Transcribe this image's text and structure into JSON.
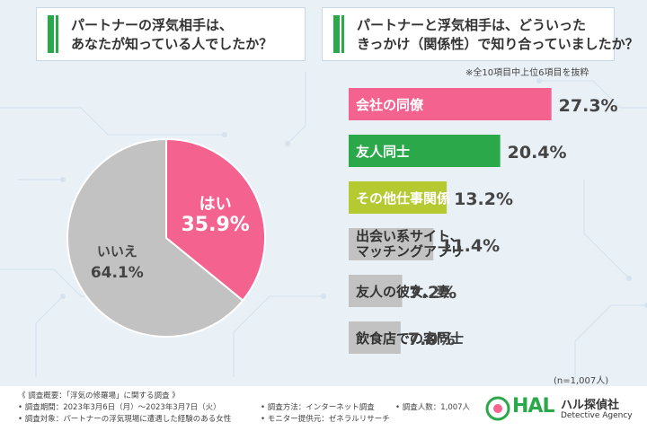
{
  "left_question": {
    "line1": "パートナーの浮気相手は、",
    "line2": "あなたが知っている人でしたか？"
  },
  "right_question": {
    "line1": "パートナーと浮気相手は、どういった",
    "line2": "きっかけ（関係性）で知り合っていましたか？"
  },
  "selection_note": "※全10項目中上位6項目を抜粋",
  "sample_note": "(n=1,007人)",
  "colors": {
    "pink": "#f4628f",
    "gray": "#c2c2c2",
    "green": "#2aa84a",
    "lime": "#b5c930"
  },
  "chart_data": [
    {
      "type": "pie",
      "slices": [
        {
          "label": "はい",
          "value": 35.9,
          "value_text": "35.9%",
          "color": "#f4628f"
        },
        {
          "label": "いいえ",
          "value": 64.1,
          "value_text": "64.1%",
          "color": "#c2c2c2"
        }
      ]
    },
    {
      "type": "bar",
      "orientation": "horizontal",
      "categories": [
        [
          "会社の同僚"
        ],
        [
          "友人同士"
        ],
        [
          "その他仕事関係"
        ],
        [
          "出会い系サイト、",
          "マッチングアプリ"
        ],
        [
          "友人の彼女、妻"
        ],
        [
          "飲食店での客同士"
        ]
      ],
      "values": [
        27.3,
        20.4,
        13.2,
        11.4,
        7.2,
        7.0
      ],
      "value_labels": [
        "27.3%",
        "20.4%",
        "13.2%",
        "11.4%",
        "7.2%",
        "7.0%"
      ],
      "colors": [
        "#f4628f",
        "#2aa84a",
        "#b5c930",
        "#c2c2c2",
        "#c2c2c2",
        "#c2c2c2"
      ]
    }
  ],
  "footer": {
    "title": "《 調査概要：「浮気の修羅場」に関する調査 》",
    "period": "• 調査期間：2023年3月6日（月）～2023年3月7日（火）",
    "target": "• 調査対象：パートナーの浮気現場に遭遇した経験のある女性",
    "method": "• 調査方法：インターネット調査",
    "provider": "• モニター提供元：ゼネラルリサーチ",
    "count": "• 調査人数：1,007人"
  },
  "logo": {
    "mark": "HAL",
    "name": "ハル探偵社",
    "english": "Detective Agency"
  }
}
